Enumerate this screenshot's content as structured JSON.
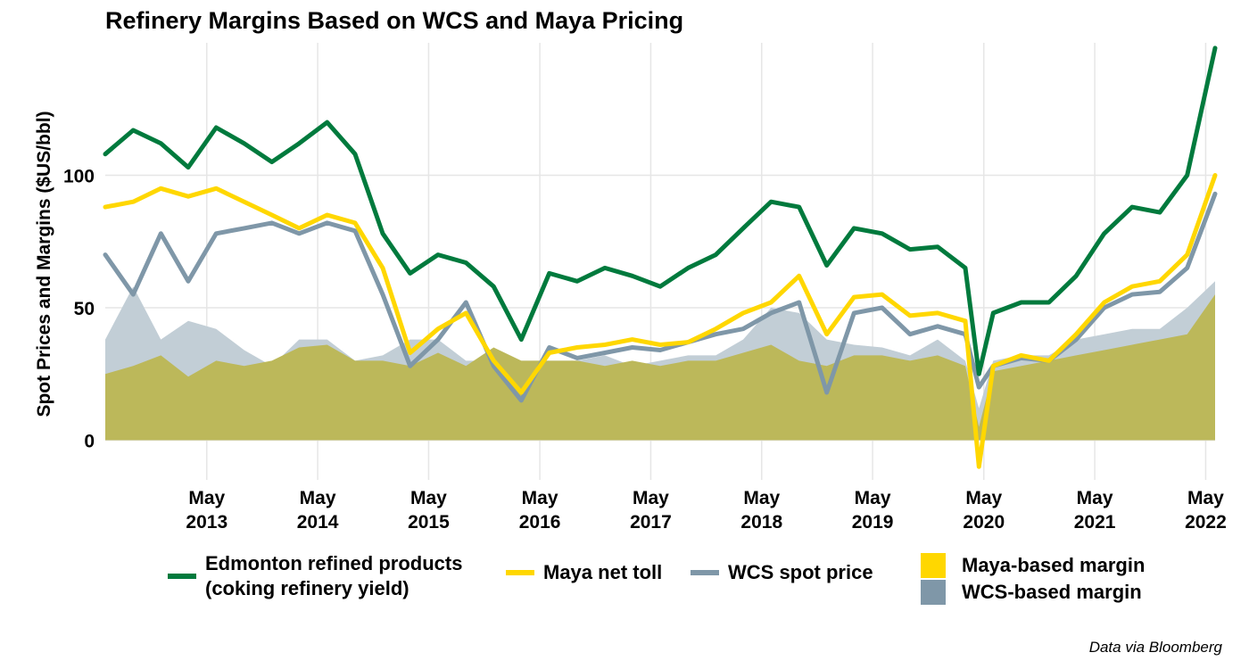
{
  "title": "Refinery Margins Based on WCS and Maya Pricing",
  "caption": "Data via Bloomberg",
  "colors": {
    "edmonton": "#007a3d",
    "maya": "#ffd700",
    "wcs": "#7f97a8",
    "maya_margin": "#bcb85a",
    "wcs_margin": "#c2ced6",
    "grid": "#e6e6e6"
  },
  "legend": {
    "edmonton_line1": "Edmonton refined products",
    "edmonton_line2": "(coking refinery yield)",
    "maya": "Maya net toll",
    "wcs": "WCS spot price",
    "maya_margin": "Maya-based margin",
    "wcs_margin": "WCS-based margin"
  },
  "chart_data": {
    "type": "line",
    "title": "Refinery Margins Based on WCS and Maya Pricing",
    "ylabel": "Spot Prices and Margins ($US/bbl)",
    "xlabel": "",
    "xlim": [
      "2012-06-01",
      "2022-06-01"
    ],
    "ylim": [
      -15,
      150
    ],
    "yticks": [
      0,
      50,
      100
    ],
    "xticks": [
      {
        "date": "2013-05-01",
        "label1": "May",
        "label2": "2013"
      },
      {
        "date": "2014-05-01",
        "label1": "May",
        "label2": "2014"
      },
      {
        "date": "2015-05-01",
        "label1": "May",
        "label2": "2015"
      },
      {
        "date": "2016-05-01",
        "label1": "May",
        "label2": "2016"
      },
      {
        "date": "2017-05-01",
        "label1": "May",
        "label2": "2017"
      },
      {
        "date": "2018-05-01",
        "label1": "May",
        "label2": "2018"
      },
      {
        "date": "2019-05-01",
        "label1": "May",
        "label2": "2019"
      },
      {
        "date": "2020-05-01",
        "label1": "May",
        "label2": "2020"
      },
      {
        "date": "2021-05-01",
        "label1": "May",
        "label2": "2021"
      },
      {
        "date": "2022-05-01",
        "label1": "May",
        "label2": "2022"
      }
    ],
    "x": [
      "2012-06-01",
      "2012-09-01",
      "2012-12-01",
      "2013-03-01",
      "2013-06-01",
      "2013-09-01",
      "2013-12-01",
      "2014-03-01",
      "2014-06-01",
      "2014-09-01",
      "2014-12-01",
      "2015-03-01",
      "2015-06-01",
      "2015-09-01",
      "2015-12-01",
      "2016-03-01",
      "2016-06-01",
      "2016-09-01",
      "2016-12-01",
      "2017-03-01",
      "2017-06-01",
      "2017-09-01",
      "2017-12-01",
      "2018-03-01",
      "2018-06-01",
      "2018-09-01",
      "2018-12-01",
      "2019-03-01",
      "2019-06-01",
      "2019-09-01",
      "2019-12-01",
      "2020-03-01",
      "2020-04-15",
      "2020-06-01",
      "2020-09-01",
      "2020-12-01",
      "2021-03-01",
      "2021-06-01",
      "2021-09-01",
      "2021-12-01",
      "2022-03-01",
      "2022-06-01"
    ],
    "series": [
      {
        "name": "Edmonton refined products (coking refinery yield)",
        "key": "edmonton",
        "values": [
          108,
          117,
          112,
          103,
          118,
          112,
          105,
          112,
          120,
          108,
          78,
          63,
          70,
          67,
          58,
          38,
          63,
          60,
          65,
          62,
          58,
          65,
          70,
          80,
          90,
          88,
          66,
          80,
          78,
          72,
          73,
          65,
          25,
          48,
          52,
          52,
          62,
          78,
          88,
          86,
          100,
          148
        ]
      },
      {
        "name": "Maya net toll",
        "key": "maya",
        "values": [
          88,
          90,
          95,
          92,
          95,
          90,
          85,
          80,
          85,
          82,
          65,
          33,
          42,
          48,
          30,
          18,
          33,
          35,
          36,
          38,
          36,
          37,
          42,
          48,
          52,
          62,
          40,
          54,
          55,
          47,
          48,
          45,
          -10,
          28,
          32,
          30,
          40,
          52,
          58,
          60,
          70,
          100
        ]
      },
      {
        "name": "WCS spot price",
        "key": "wcs",
        "values": [
          70,
          55,
          78,
          60,
          78,
          80,
          82,
          78,
          82,
          79,
          55,
          28,
          38,
          52,
          28,
          15,
          35,
          31,
          33,
          35,
          34,
          37,
          40,
          42,
          48,
          52,
          18,
          48,
          50,
          40,
          43,
          40,
          20,
          28,
          31,
          30,
          38,
          50,
          55,
          56,
          65,
          93
        ]
      },
      {
        "name": "Maya-based margin",
        "key": "maya_margin",
        "values": [
          25,
          28,
          32,
          24,
          30,
          28,
          30,
          35,
          36,
          30,
          30,
          28,
          33,
          28,
          35,
          30,
          30,
          30,
          28,
          30,
          28,
          30,
          30,
          33,
          36,
          30,
          28,
          32,
          32,
          30,
          32,
          28,
          5,
          26,
          28,
          30,
          32,
          34,
          36,
          38,
          40,
          55
        ]
      },
      {
        "name": "WCS-based margin",
        "key": "wcs_margin",
        "values": [
          38,
          58,
          38,
          45,
          42,
          34,
          28,
          38,
          38,
          30,
          32,
          38,
          38,
          30,
          30,
          30,
          30,
          30,
          32,
          28,
          30,
          32,
          32,
          38,
          50,
          48,
          38,
          36,
          35,
          32,
          38,
          30,
          12,
          30,
          32,
          32,
          38,
          40,
          42,
          42,
          50,
          60
        ]
      }
    ]
  }
}
